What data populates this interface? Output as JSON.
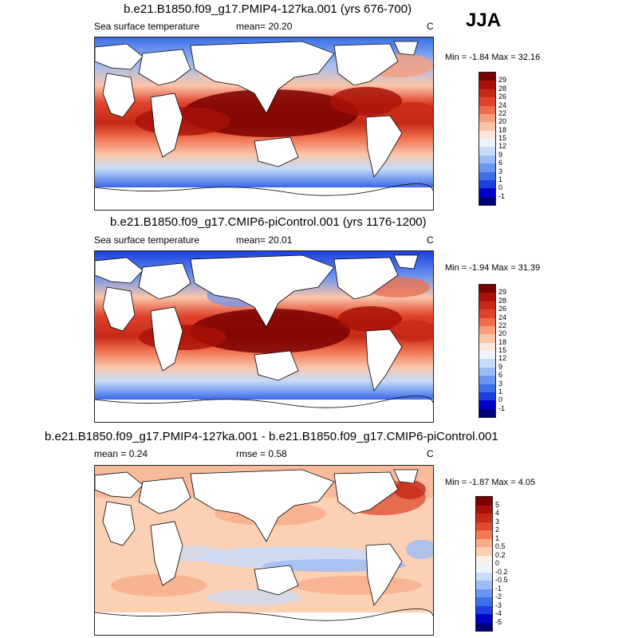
{
  "season": "JJA",
  "colors": {
    "abs_scale": [
      "#00007a",
      "#0000c8",
      "#1c3fe0",
      "#3d6fe8",
      "#6b96ef",
      "#9dbcf5",
      "#c7dcf9",
      "#eef4fc",
      "#fde7dc",
      "#fbc5a9",
      "#f89e7b",
      "#ef6d4c",
      "#e0432b",
      "#c62a17",
      "#a81208",
      "#7a0000"
    ],
    "diff_scale": [
      "#00007a",
      "#0000c8",
      "#1c3fe0",
      "#3d6fe8",
      "#6b96ef",
      "#9dbcf5",
      "#c7dcf9",
      "#eef4fc",
      "#fdf0e8",
      "#fbd0b5",
      "#f7ab88",
      "#ef7a55",
      "#e0492e",
      "#c62a17",
      "#a81208",
      "#7a0000"
    ],
    "land": "#ffffff",
    "coast": "#000000"
  },
  "panels": [
    {
      "title": "b.e21.B1850.f09_g17.PMIP4-127ka.001 (yrs 676-700)",
      "left_label": "Sea surface temperature",
      "mean_label": "mean=  20.20",
      "right_label": "C",
      "minmax": "Min =  -1.84 Max =  32.16",
      "colorbar_labels": [
        "29",
        "28",
        "26",
        "24",
        "22",
        "20",
        "18",
        "15",
        "12",
        "9",
        "6",
        "3",
        "1",
        "0",
        "-1"
      ],
      "scale": "abs"
    },
    {
      "title": "b.e21.B1850.f09_g17.CMIP6-piControl.001 (yrs 1176-1200)",
      "left_label": "Sea surface temperature",
      "mean_label": "mean=  20.01",
      "right_label": "C",
      "minmax": "Min =  -1.94 Max =  31.39",
      "colorbar_labels": [
        "29",
        "28",
        "26",
        "24",
        "22",
        "20",
        "18",
        "15",
        "12",
        "9",
        "6",
        "3",
        "1",
        "0",
        "-1"
      ],
      "scale": "abs"
    },
    {
      "title": "b.e21.B1850.f09_g17.PMIP4-127ka.001 - b.e21.B1850.f09_g17.CMIP6-piControl.001",
      "left_label": "mean =   0.24",
      "mean_label": "rmse =   0.58",
      "right_label": "C",
      "minmax": "Min =  -1.87 Max =   4.05",
      "colorbar_labels": [
        "5",
        "4",
        "3",
        "2",
        "1",
        "0.5",
        "0.2",
        "0",
        "-0.2",
        "-0.5",
        "-1",
        "-2",
        "-3",
        "-4",
        "-5"
      ],
      "scale": "diff"
    }
  ]
}
